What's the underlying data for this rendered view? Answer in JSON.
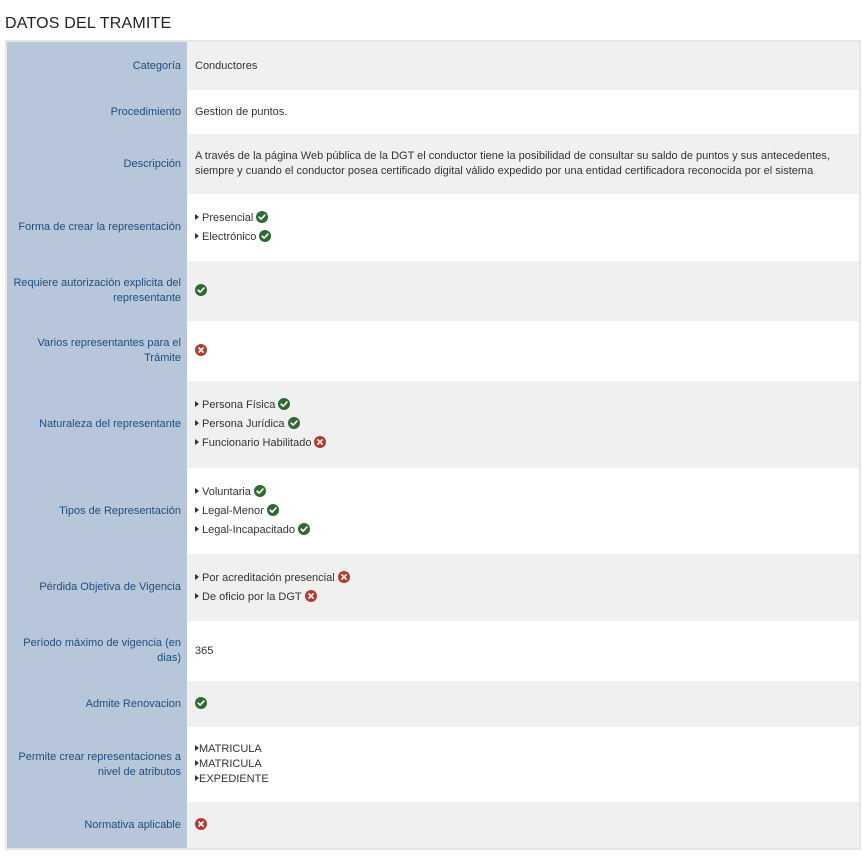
{
  "section_title": "DATOS DEL TRAMITE",
  "colors": {
    "label_bg": "#b7c6d8",
    "label_text": "#1b4f83",
    "ok": "#2e6b2e",
    "ko": "#b23b2e",
    "row_alt": "#f0f0f0"
  },
  "rows": {
    "categoria": {
      "label": "Categoría",
      "value": "Conductores"
    },
    "procedimiento": {
      "label": "Procedimiento",
      "value": "Gestion de puntos."
    },
    "descripcion": {
      "label": "Descripción",
      "value": "A través de la página Web pública de la DGT el conductor tiene la posibilidad de consultar su saldo de puntos y sus antecedentes, siempre y cuando el conductor posea certificado digital válido expedido por una entidad certificadora reconocida por el sistema"
    },
    "forma": {
      "label": "Forma de crear la representación",
      "options": [
        {
          "text": "Presencial",
          "status": "check-icon"
        },
        {
          "text": "Electrónico",
          "status": "check-icon"
        }
      ]
    },
    "requiere": {
      "label": "Requiere autorización explicita del representante",
      "status": "check-icon"
    },
    "varios": {
      "label": "Varios representantes para el Trámite",
      "status": "cross-icon"
    },
    "naturaleza": {
      "label": "Naturaleza del representante",
      "options": [
        {
          "text": "Persona Física",
          "status": "check-icon"
        },
        {
          "text": "Persona Jurídica",
          "status": "check-icon"
        },
        {
          "text": "Funcionario Habilitado",
          "status": "cross-icon"
        }
      ]
    },
    "tipos": {
      "label": "Tipos de Representación",
      "options": [
        {
          "text": "Voluntaria",
          "status": "check-icon"
        },
        {
          "text": "Legal-Menor",
          "status": "check-icon"
        },
        {
          "text": "Legal-Incapacitado",
          "status": "check-icon"
        }
      ]
    },
    "perdida": {
      "label": "Pérdida Objetiva de Vigencia",
      "options": [
        {
          "text": "Por acreditación presencial",
          "status": "cross-icon"
        },
        {
          "text": "De oficio por la DGT",
          "status": "cross-icon"
        }
      ]
    },
    "periodo": {
      "label": "Período máximo de vigencia (en dias)",
      "value": "365"
    },
    "renovacion": {
      "label": "Admite Renovacion",
      "status": "check-icon"
    },
    "atributos": {
      "label": "Permite crear representaciones a nivel de atributos",
      "items": [
        "MATRICULA",
        "MATRICULA",
        "EXPEDIENTE"
      ]
    },
    "normativa": {
      "label": "Normativa aplicable",
      "status": "cross-icon"
    }
  }
}
